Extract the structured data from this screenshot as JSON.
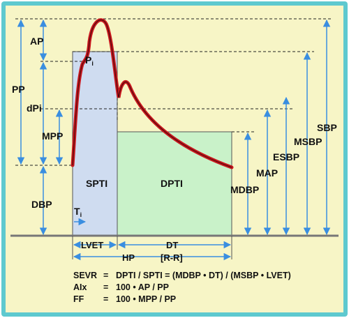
{
  "frame": {
    "background": "#f7f5c6",
    "border": "#5ec9cf"
  },
  "regions": {
    "systolic": {
      "label": "SPTI",
      "fill": "#cfdcf0"
    },
    "diastolic": {
      "label": "DPTI",
      "fill": "#c9f2c9"
    }
  },
  "left_labels": {
    "ap": "AP",
    "pp": "PP",
    "pi": "P",
    "pi_sub": "i",
    "dpi": "dPi",
    "mpp": "MPP",
    "dbp": "DBP",
    "ti": "T",
    "ti_sub": "i"
  },
  "right_labels": {
    "sbp": "SBP",
    "msbp": "MSBP",
    "esbp": "ESBP",
    "map": "MAP",
    "mdbp": "MDBP"
  },
  "time_labels": {
    "lvet": "LVET",
    "dt": "DT",
    "hp": "HP",
    "rr": "[R-R]"
  },
  "formulas": [
    {
      "name": "SEVR",
      "eq": "=",
      "expr": "DPTI / SPTI  =  (MDBP • DT) / (MSBP • LVET)"
    },
    {
      "name": "AIx",
      "eq": "=",
      "expr": "100 • AP / PP"
    },
    {
      "name": "FF",
      "eq": "=",
      "expr": "100 • MPP / PP"
    }
  ],
  "colors": {
    "waveform": "#c8161d",
    "arrows": "#3a8ee0",
    "baseline": "#777777",
    "dashed": "#222222"
  }
}
